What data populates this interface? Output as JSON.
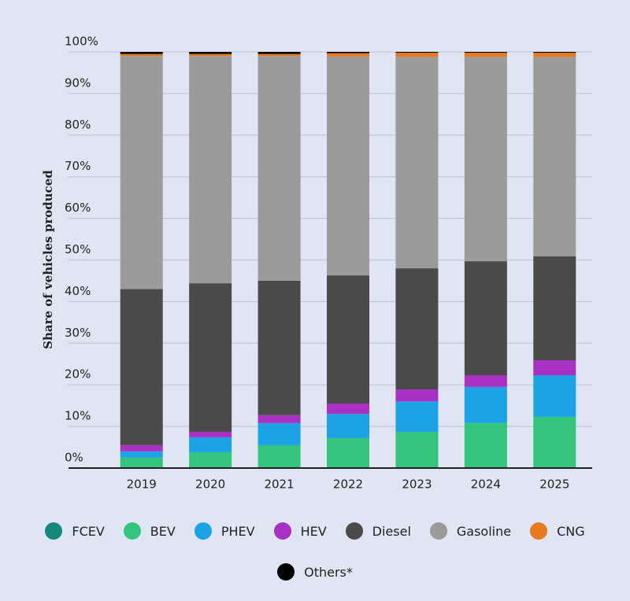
{
  "chart_data": {
    "type": "stacked_bar",
    "y_label": "Share of vehicles produced",
    "categories": [
      "2019",
      "2020",
      "2021",
      "2022",
      "2023",
      "2024",
      "2025"
    ],
    "series": [
      {
        "name": "FCEV",
        "color": "#16877c",
        "values": [
          0,
          0,
          0,
          0,
          0,
          0,
          0
        ]
      },
      {
        "name": "BEV",
        "color": "#35c47b",
        "values": [
          2.5,
          3.8,
          5.5,
          7.2,
          8.7,
          10.8,
          12.3
        ]
      },
      {
        "name": "PHEV",
        "color": "#1ba3e6",
        "values": [
          1.5,
          3.6,
          5.3,
          5.8,
          7.3,
          8.7,
          10
        ]
      },
      {
        "name": "HEV",
        "color": "#a830c2",
        "values": [
          1.5,
          1.3,
          1.9,
          2.5,
          2.9,
          2.8,
          3.6
        ]
      },
      {
        "name": "Diesel",
        "color": "#4a4a4a",
        "values": [
          37.5,
          35.7,
          32.3,
          30.8,
          29.1,
          27.4,
          25
        ]
      },
      {
        "name": "Gasoline",
        "color": "#9b9b9b",
        "values": [
          56,
          54.6,
          54,
          52.6,
          50.8,
          49.1,
          47.9
        ]
      },
      {
        "name": "CNG",
        "color": "#e7791f",
        "values": [
          0.5,
          0.5,
          0.5,
          0.8,
          1,
          1,
          1
        ]
      },
      {
        "name": "Others*",
        "color": "#000000",
        "values": [
          0.5,
          0.5,
          0.5,
          0.3,
          0.2,
          0.2,
          0.2
        ]
      }
    ],
    "ylim": [
      0,
      100
    ],
    "yticks": [
      {
        "value": 0,
        "label": "0%"
      },
      {
        "value": 10,
        "label": "10%"
      },
      {
        "value": 20,
        "label": "20%"
      },
      {
        "value": 30,
        "label": "30%"
      },
      {
        "value": 40,
        "label": "40%"
      },
      {
        "value": 50,
        "label": "50%"
      },
      {
        "value": 60,
        "label": "60%"
      },
      {
        "value": 70,
        "label": "70%"
      },
      {
        "value": 80,
        "label": "80%"
      },
      {
        "value": 90,
        "label": "90%"
      },
      {
        "value": 100,
        "label": "100%"
      }
    ],
    "grid": true,
    "legend": "bottom"
  }
}
